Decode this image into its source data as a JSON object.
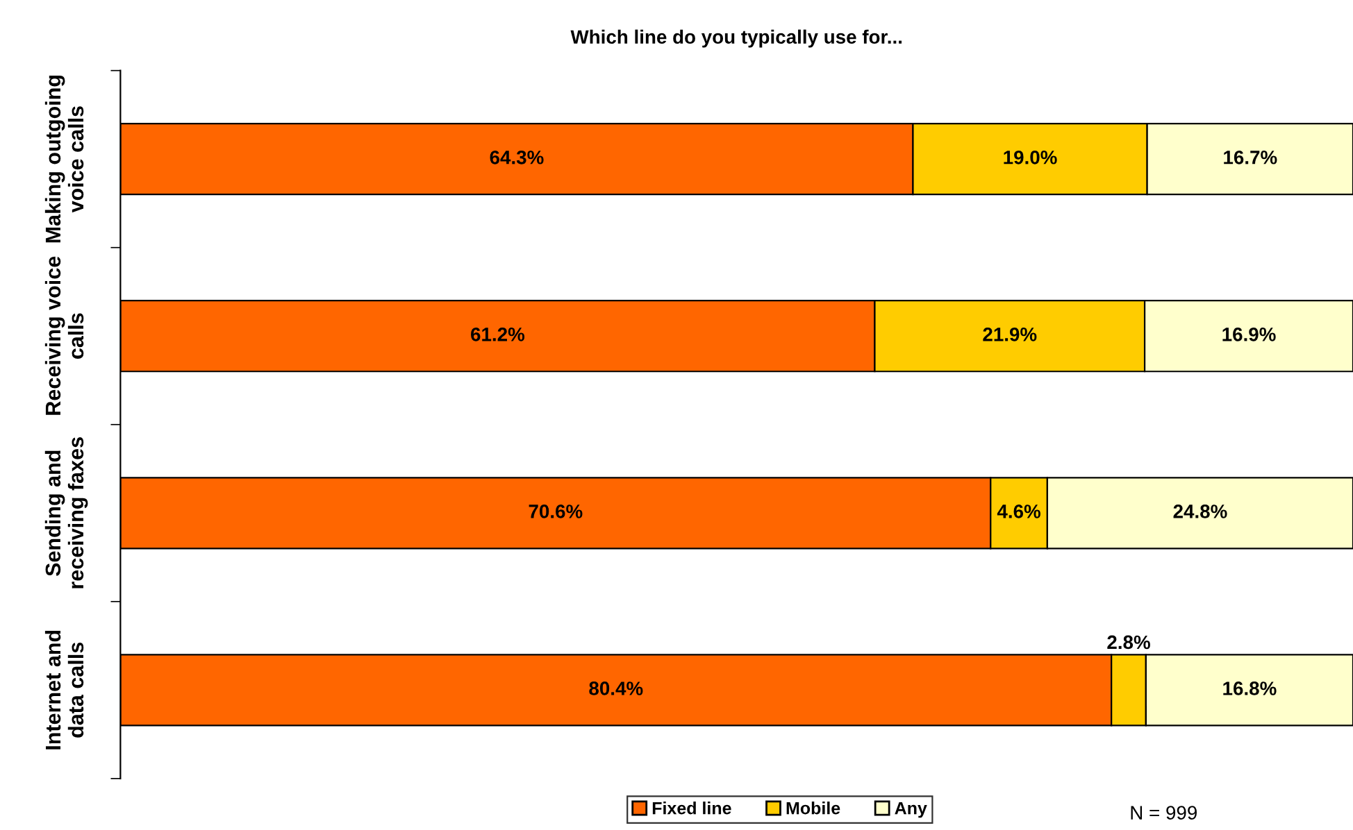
{
  "chart_data": {
    "type": "bar",
    "orientation": "horizontal",
    "stacked": true,
    "title": "Which line do you typically use for...",
    "categories": [
      "Making outgoing voice calls",
      "Receiving voice calls",
      "Sending and receiving faxes",
      "Internet and data calls"
    ],
    "series": [
      {
        "name": "Fixed line",
        "color": "#ff6600",
        "values": [
          64.3,
          61.2,
          70.6,
          80.4
        ],
        "value_labels": [
          "64.3%",
          "61.2%",
          "70.6%",
          "80.4%"
        ]
      },
      {
        "name": "Mobile",
        "color": "#ffcc00",
        "values": [
          19.0,
          21.9,
          4.6,
          2.8
        ],
        "value_labels": [
          "19.0%",
          "21.9%",
          "4.6%",
          "2.8%"
        ]
      },
      {
        "name": "Any",
        "color": "#ffffcc",
        "values": [
          16.7,
          16.9,
          24.8,
          16.8
        ],
        "value_labels": [
          "16.7%",
          "16.9%",
          "24.8%",
          "16.8%"
        ]
      }
    ],
    "legend": "bottom",
    "tick_labels": "y",
    "annotations": [
      "N = 999"
    ]
  }
}
